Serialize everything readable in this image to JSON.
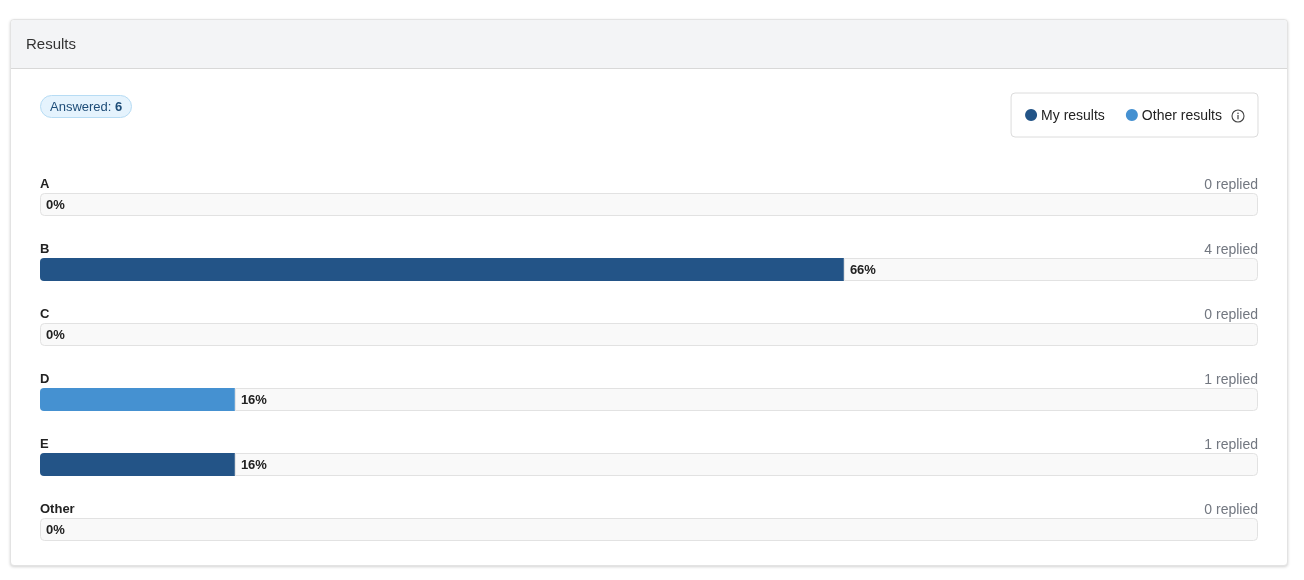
{
  "chart_data": {
    "type": "bar",
    "orientation": "horizontal",
    "stacked": true,
    "title": "Results",
    "categories": [
      "A",
      "B",
      "C",
      "D",
      "E",
      "Other"
    ],
    "series": [
      {
        "name": "My results",
        "color": "#235487",
        "values": [
          null,
          66,
          null,
          null,
          16,
          null
        ],
        "value_labels": [
          null,
          "66%",
          null,
          null,
          "16%",
          null
        ]
      },
      {
        "name": "Other results",
        "color": "#4591d1",
        "values": [
          null,
          null,
          null,
          16,
          null,
          null
        ],
        "value_labels": [
          null,
          null,
          null,
          "16%",
          null,
          null
        ]
      },
      {
        "color": "#f9f9f9",
        "values": [
          100,
          34,
          100,
          84,
          84,
          100
        ]
      }
    ],
    "xlim": [
      0,
      100
    ],
    "tick_labels": "y",
    "legend": "top right",
    "annotations": [
      "Answered: 6",
      "0 replied",
      "4 replied",
      "0 replied",
      "1 replied",
      "1 replied",
      "0 replied",
      "0%",
      "0%",
      "0%"
    ]
  }
}
